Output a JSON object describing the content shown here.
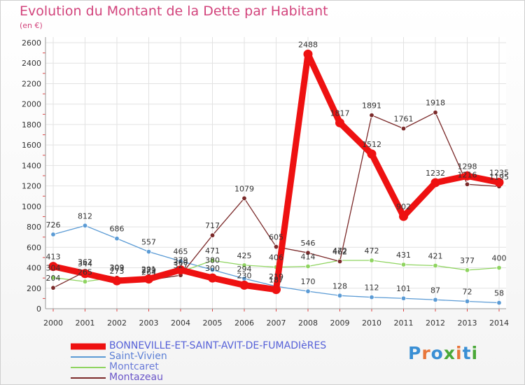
{
  "header": {
    "title": "Evolution du Montant de la Dette par Habitant",
    "subtitle": "(en €)"
  },
  "logo": {
    "text": "Proxiti",
    "colors": [
      "#3a8fd4",
      "#e8763a",
      "#3a8fd4",
      "#4aa838",
      "#e8763a",
      "#3a8fd4",
      "#4aa838"
    ]
  },
  "chart_data": {
    "type": "line",
    "title": "Evolution du Montant de la Dette par Habitant",
    "subtitle": "(en €)",
    "x": [
      "2000",
      "2001",
      "2002",
      "2003",
      "2004",
      "2005",
      "2006",
      "2007",
      "2008",
      "2009",
      "2010",
      "2011",
      "2012",
      "2013",
      "2014"
    ],
    "ylim": [
      0,
      2600
    ],
    "yticks": [
      "0",
      "200",
      "400",
      "600",
      "800",
      "1000",
      "1200",
      "1400",
      "1600",
      "1800",
      "2000",
      "2200",
      "2400",
      "2600"
    ],
    "grid": true,
    "legend_position": "bottom-left",
    "series": [
      {
        "name": "BONNEVILLE-ET-SAINT-AVIT-DE-FUMADIèRES",
        "color": "#ee1111",
        "values": [
          413,
          344,
          273,
          291,
          379,
          300,
          230,
          187,
          2488,
          1817,
          1512,
          902,
          1232,
          1298,
          1235
        ],
        "labels": [
          "413",
          "344",
          "273",
          "291",
          "379",
          "300",
          "230",
          "187",
          "2488",
          "1817",
          "1512",
          "902",
          "1232",
          "1298",
          "1235"
        ]
      },
      {
        "name": "Saint-Vivien",
        "color": "#5b9bd5",
        "values": [
          726,
          812,
          686,
          557,
          465,
          380,
          294,
          219,
          170,
          128,
          112,
          101,
          87,
          72,
          58
        ],
        "labels": [
          "726",
          "812",
          "686",
          "557",
          "465",
          "380",
          "294",
          "219",
          "170",
          "128",
          "112",
          "101",
          "87",
          "72",
          "58"
        ]
      },
      {
        "name": "Montcaret",
        "color": "#8fd460",
        "values": [
          304,
          265,
          309,
          264,
          360,
          471,
          425,
          406,
          414,
          472,
          472,
          431,
          421,
          377,
          400
        ],
        "labels": [
          "304",
          "265",
          "309",
          "264",
          "360",
          "471",
          "425",
          "406",
          "414",
          "472",
          "472",
          "431",
          "421",
          "377",
          "400"
        ]
      },
      {
        "name": "Montazeau",
        "color": "#7b2a2a",
        "values": [
          204,
          362,
          303,
          279,
          327,
          717,
          1079,
          605,
          546,
          462,
          1891,
          1761,
          1918,
          1216,
          1195
        ],
        "labels": [
          "204",
          "362",
          "303",
          "279",
          "327",
          "717",
          "1079",
          "605",
          "546",
          "462",
          "1891",
          "1761",
          "1918",
          "1216",
          "1195"
        ]
      }
    ]
  }
}
